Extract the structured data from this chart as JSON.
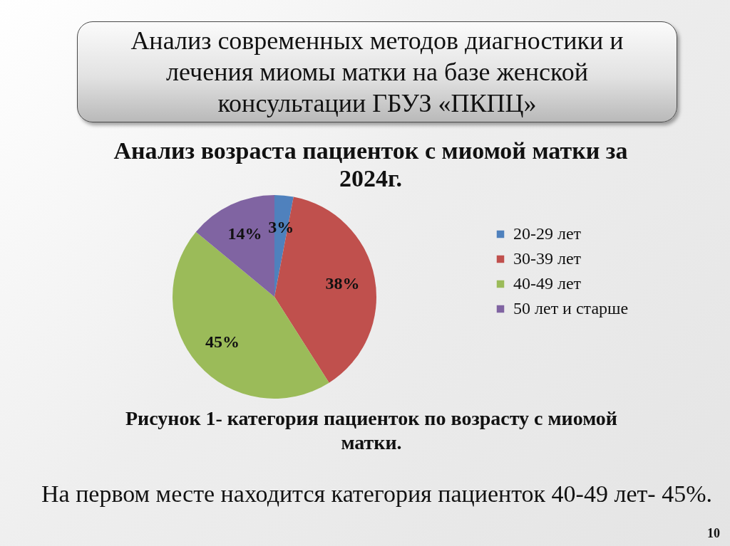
{
  "chart_data": {
    "type": "pie",
    "title": "Анализ современных методов диагностики и лечения миомы матки на базе женской консультации ГБУЗ «ПКПЦ»",
    "subtitle": "Анализ возраста пациенток с миомой матки за 2024г.",
    "categories": [
      "20-29 лет",
      "30-39 лет",
      "40-49 лет",
      "50 лет и старше"
    ],
    "values": [
      3,
      38,
      45,
      14
    ],
    "value_labels": [
      "3%",
      "38%",
      "45%",
      "14%"
    ],
    "colors": [
      "#4f81bd",
      "#c0504d",
      "#9bbb59",
      "#8064a2"
    ],
    "legend": "right",
    "annotations": [
      "Рисунок 1- категория пациенток по возрасту с миомой матки.",
      "На первом месте находится категория пациенток 40-49 лет- 45%.",
      "10"
    ]
  }
}
